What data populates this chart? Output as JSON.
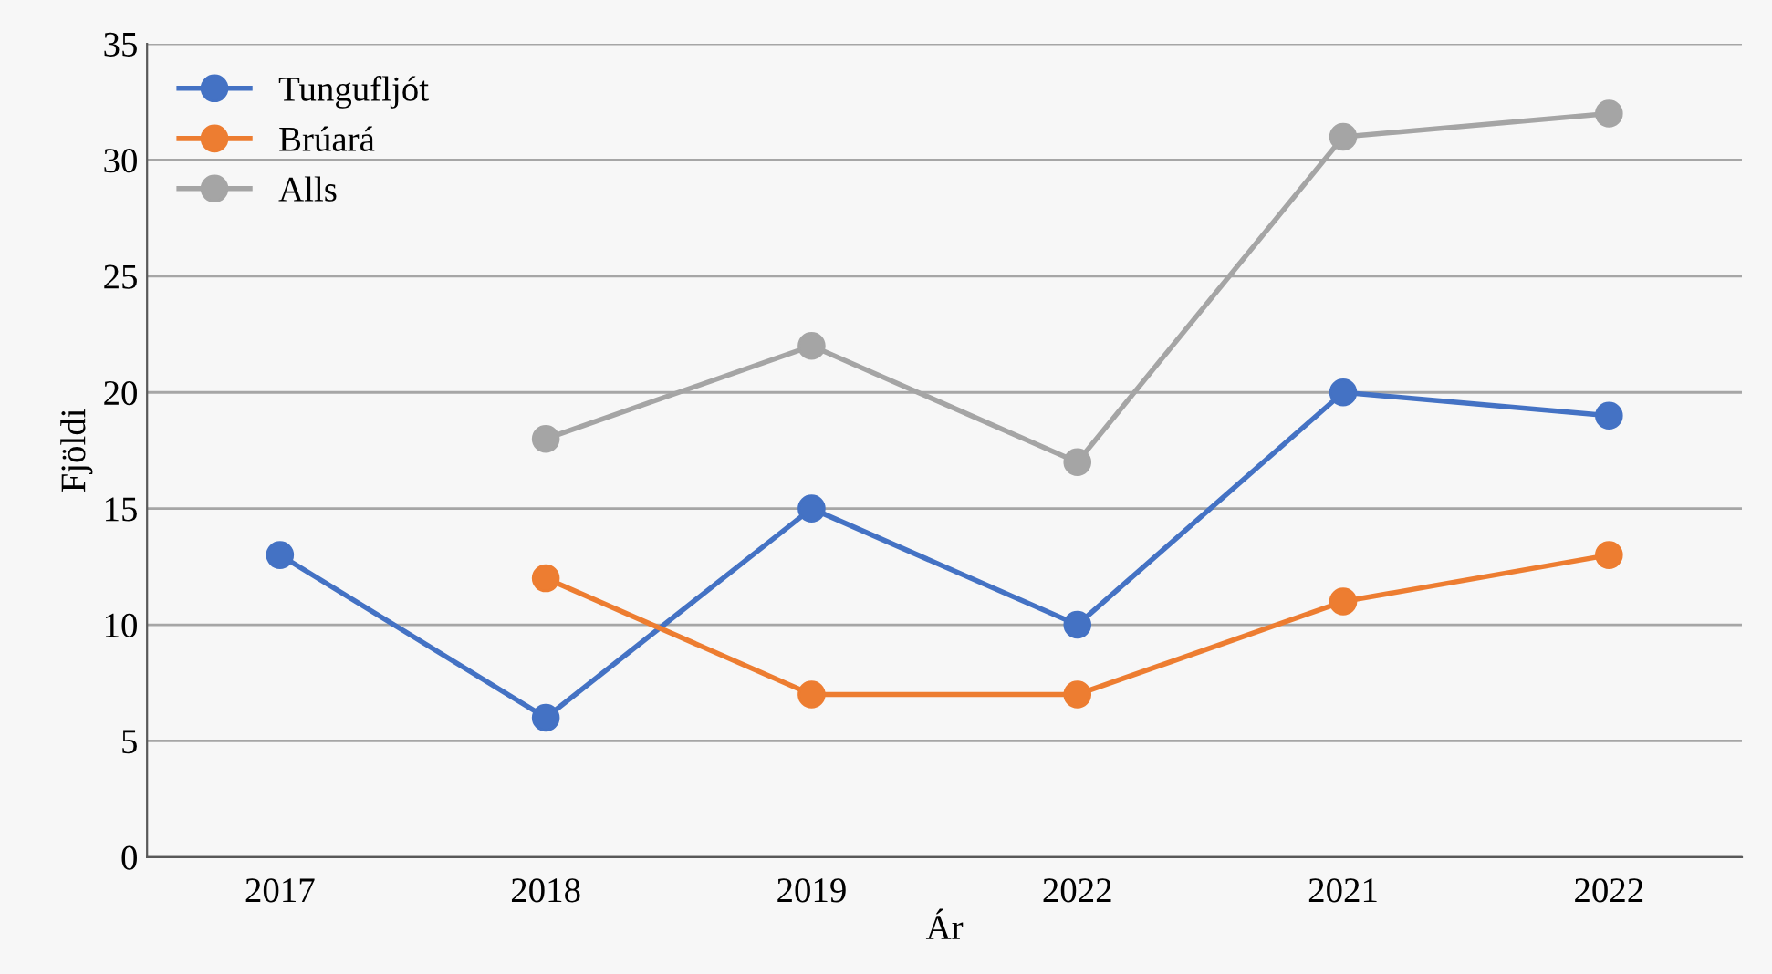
{
  "chart_data": {
    "type": "line",
    "xlabel": "Ár",
    "ylabel": "Fjöldi",
    "categories": [
      "2017",
      "2018",
      "2019",
      "2022",
      "2021",
      "2022"
    ],
    "series": [
      {
        "name": "Tungufljót",
        "color": "#4472c4",
        "values": [
          13,
          6,
          15,
          10,
          20,
          19
        ]
      },
      {
        "name": "Brúará",
        "color": "#ed7d31",
        "values": [
          null,
          12,
          7,
          7,
          11,
          13
        ]
      },
      {
        "name": "Alls",
        "color": "#a5a5a5",
        "values": [
          null,
          18,
          22,
          17,
          31,
          32
        ]
      }
    ],
    "ylim": [
      0,
      35
    ],
    "yticks": [
      0,
      5,
      10,
      15,
      20,
      25,
      30,
      35
    ],
    "grid": "y",
    "legend": "top left",
    "marker": "circle",
    "line_style": "solid"
  }
}
